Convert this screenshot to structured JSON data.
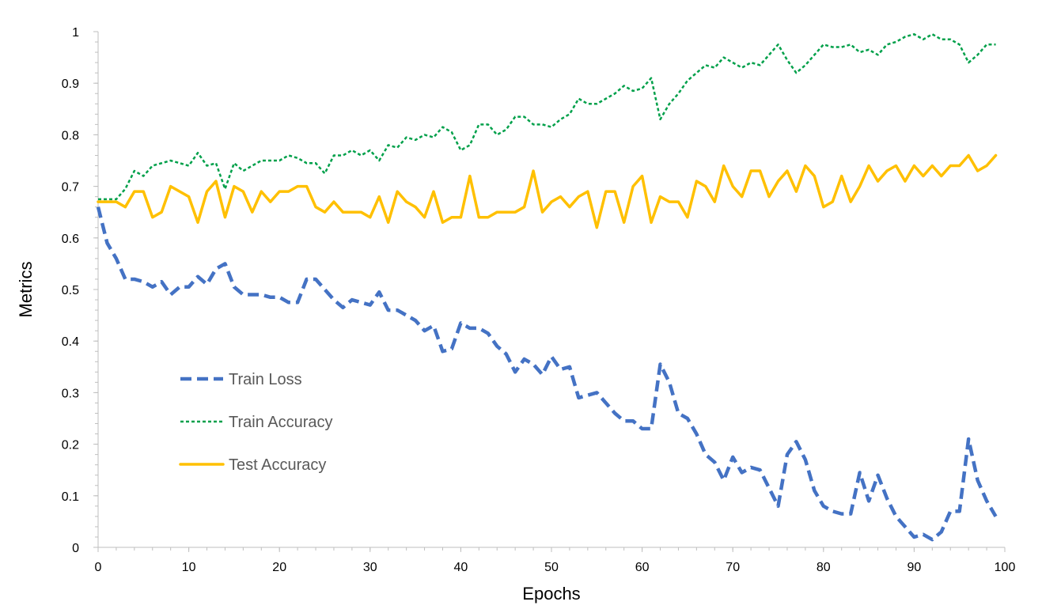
{
  "chart_data": {
    "type": "line",
    "title": "",
    "xlabel": "Epochs",
    "ylabel": "Metrics",
    "xlim": [
      0,
      100
    ],
    "ylim": [
      0,
      1
    ],
    "x_ticks": [
      "0",
      "10",
      "20",
      "30",
      "40",
      "50",
      "60",
      "70",
      "80",
      "90",
      "100"
    ],
    "y_ticks": [
      "0",
      "0.1",
      "0.2",
      "0.3",
      "0.4",
      "0.5",
      "0.6",
      "0.7",
      "0.8",
      "0.9",
      "1"
    ],
    "grid": false,
    "legend_position": "lower-left",
    "series": [
      {
        "name": "Train Loss",
        "color": "#4472C4",
        "style": "dashed-thick",
        "x": [
          0,
          1,
          2,
          3,
          4,
          5,
          6,
          7,
          8,
          9,
          10,
          11,
          12,
          13,
          14,
          15,
          16,
          17,
          18,
          19,
          20,
          21,
          22,
          23,
          24,
          25,
          26,
          27,
          28,
          29,
          30,
          31,
          32,
          33,
          34,
          35,
          36,
          37,
          38,
          39,
          40,
          41,
          42,
          43,
          44,
          45,
          46,
          47,
          48,
          49,
          50,
          51,
          52,
          53,
          54,
          55,
          56,
          57,
          58,
          59,
          60,
          61,
          62,
          63,
          64,
          65,
          66,
          67,
          68,
          69,
          70,
          71,
          72,
          73,
          74,
          75,
          76,
          77,
          78,
          79,
          80,
          81,
          82,
          83,
          84,
          85,
          86,
          87,
          88,
          89,
          90,
          91,
          92,
          93,
          94,
          95,
          96,
          97,
          98,
          99
        ],
        "values": [
          0.66,
          0.59,
          0.56,
          0.52,
          0.52,
          0.515,
          0.505,
          0.515,
          0.49,
          0.505,
          0.505,
          0.525,
          0.51,
          0.54,
          0.55,
          0.505,
          0.49,
          0.49,
          0.49,
          0.485,
          0.485,
          0.475,
          0.475,
          0.52,
          0.52,
          0.5,
          0.48,
          0.465,
          0.48,
          0.475,
          0.47,
          0.495,
          0.46,
          0.46,
          0.45,
          0.44,
          0.42,
          0.43,
          0.38,
          0.385,
          0.435,
          0.425,
          0.425,
          0.415,
          0.39,
          0.375,
          0.34,
          0.365,
          0.355,
          0.335,
          0.37,
          0.345,
          0.35,
          0.29,
          0.295,
          0.3,
          0.28,
          0.26,
          0.245,
          0.245,
          0.23,
          0.23,
          0.355,
          0.32,
          0.26,
          0.25,
          0.22,
          0.18,
          0.165,
          0.13,
          0.175,
          0.145,
          0.155,
          0.15,
          0.115,
          0.08,
          0.18,
          0.205,
          0.17,
          0.11,
          0.08,
          0.07,
          0.065,
          0.065,
          0.145,
          0.09,
          0.14,
          0.095,
          0.06,
          0.04,
          0.02,
          0.025,
          0.015,
          0.03,
          0.07,
          0.07,
          0.21,
          0.13,
          0.09,
          0.06
        ]
      },
      {
        "name": "Train Accuracy",
        "color": "#00A04A",
        "style": "dotted",
        "x": [
          0,
          1,
          2,
          3,
          4,
          5,
          6,
          7,
          8,
          9,
          10,
          11,
          12,
          13,
          14,
          15,
          16,
          17,
          18,
          19,
          20,
          21,
          22,
          23,
          24,
          25,
          26,
          27,
          28,
          29,
          30,
          31,
          32,
          33,
          34,
          35,
          36,
          37,
          38,
          39,
          40,
          41,
          42,
          43,
          44,
          45,
          46,
          47,
          48,
          49,
          50,
          51,
          52,
          53,
          54,
          55,
          56,
          57,
          58,
          59,
          60,
          61,
          62,
          63,
          64,
          65,
          66,
          67,
          68,
          69,
          70,
          71,
          72,
          73,
          74,
          75,
          76,
          77,
          78,
          79,
          80,
          81,
          82,
          83,
          84,
          85,
          86,
          87,
          88,
          89,
          90,
          91,
          92,
          93,
          94,
          95,
          96,
          97,
          98,
          99
        ],
        "values": [
          0.675,
          0.675,
          0.675,
          0.695,
          0.73,
          0.72,
          0.74,
          0.745,
          0.75,
          0.745,
          0.74,
          0.765,
          0.74,
          0.745,
          0.695,
          0.745,
          0.73,
          0.74,
          0.75,
          0.75,
          0.75,
          0.76,
          0.755,
          0.745,
          0.745,
          0.725,
          0.76,
          0.76,
          0.77,
          0.76,
          0.77,
          0.75,
          0.78,
          0.775,
          0.795,
          0.79,
          0.8,
          0.795,
          0.815,
          0.805,
          0.77,
          0.78,
          0.82,
          0.82,
          0.8,
          0.81,
          0.835,
          0.835,
          0.82,
          0.82,
          0.815,
          0.83,
          0.84,
          0.87,
          0.86,
          0.86,
          0.87,
          0.88,
          0.895,
          0.885,
          0.89,
          0.91,
          0.83,
          0.86,
          0.88,
          0.905,
          0.92,
          0.935,
          0.93,
          0.95,
          0.94,
          0.93,
          0.94,
          0.935,
          0.955,
          0.975,
          0.945,
          0.92,
          0.935,
          0.955,
          0.975,
          0.97,
          0.97,
          0.975,
          0.96,
          0.965,
          0.955,
          0.975,
          0.98,
          0.99,
          0.995,
          0.985,
          0.995,
          0.985,
          0.985,
          0.975,
          0.94,
          0.955,
          0.975,
          0.975
        ]
      },
      {
        "name": "Test Accuracy",
        "color": "#FFC000",
        "style": "solid",
        "x": [
          0,
          1,
          2,
          3,
          4,
          5,
          6,
          7,
          8,
          9,
          10,
          11,
          12,
          13,
          14,
          15,
          16,
          17,
          18,
          19,
          20,
          21,
          22,
          23,
          24,
          25,
          26,
          27,
          28,
          29,
          30,
          31,
          32,
          33,
          34,
          35,
          36,
          37,
          38,
          39,
          40,
          41,
          42,
          43,
          44,
          45,
          46,
          47,
          48,
          49,
          50,
          51,
          52,
          53,
          54,
          55,
          56,
          57,
          58,
          59,
          60,
          61,
          62,
          63,
          64,
          65,
          66,
          67,
          68,
          69,
          70,
          71,
          72,
          73,
          74,
          75,
          76,
          77,
          78,
          79,
          80,
          81,
          82,
          83,
          84,
          85,
          86,
          87,
          88,
          89,
          90,
          91,
          92,
          93,
          94,
          95,
          96,
          97,
          98,
          99
        ],
        "values": [
          0.67,
          0.67,
          0.67,
          0.66,
          0.69,
          0.69,
          0.64,
          0.65,
          0.7,
          0.69,
          0.68,
          0.63,
          0.69,
          0.71,
          0.64,
          0.7,
          0.69,
          0.65,
          0.69,
          0.67,
          0.69,
          0.69,
          0.7,
          0.7,
          0.66,
          0.65,
          0.67,
          0.65,
          0.65,
          0.65,
          0.64,
          0.68,
          0.63,
          0.69,
          0.67,
          0.66,
          0.64,
          0.69,
          0.63,
          0.64,
          0.64,
          0.72,
          0.64,
          0.64,
          0.65,
          0.65,
          0.65,
          0.66,
          0.73,
          0.65,
          0.67,
          0.68,
          0.66,
          0.68,
          0.69,
          0.62,
          0.69,
          0.69,
          0.63,
          0.7,
          0.72,
          0.63,
          0.68,
          0.67,
          0.67,
          0.64,
          0.71,
          0.7,
          0.67,
          0.74,
          0.7,
          0.68,
          0.73,
          0.73,
          0.68,
          0.71,
          0.73,
          0.69,
          0.74,
          0.72,
          0.66,
          0.67,
          0.72,
          0.67,
          0.7,
          0.74,
          0.71,
          0.73,
          0.74,
          0.71,
          0.74,
          0.72,
          0.74,
          0.72,
          0.74,
          0.74,
          0.76,
          0.73,
          0.74,
          0.76
        ]
      }
    ]
  }
}
